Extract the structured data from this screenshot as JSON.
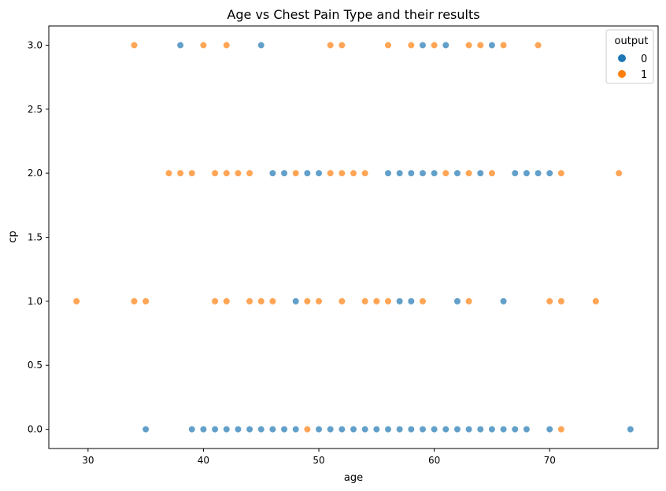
{
  "chart_data": {
    "type": "scatter",
    "title": "Age vs Chest Pain Type and their results",
    "xlabel": "age",
    "ylabel": "cp",
    "xlim": [
      26.6,
      79.4
    ],
    "ylim": [
      -0.15,
      3.15
    ],
    "xticks": [
      "30",
      "40",
      "50",
      "60",
      "70"
    ],
    "yticks": [
      "0.0",
      "0.5",
      "1.0",
      "1.5",
      "2.0",
      "2.5",
      "3.0"
    ],
    "grid": false,
    "legend": {
      "title": "output",
      "position": "top-right"
    },
    "series": [
      {
        "name": "0",
        "color": "#1f77b4",
        "points": [
          [
            35,
            0
          ],
          [
            39,
            0
          ],
          [
            40,
            0
          ],
          [
            41,
            0
          ],
          [
            42,
            0
          ],
          [
            43,
            0
          ],
          [
            44,
            0
          ],
          [
            45,
            0
          ],
          [
            46,
            0
          ],
          [
            47,
            0
          ],
          [
            48,
            0
          ],
          [
            50,
            0
          ],
          [
            51,
            0
          ],
          [
            52,
            0
          ],
          [
            53,
            0
          ],
          [
            54,
            0
          ],
          [
            55,
            0
          ],
          [
            56,
            0
          ],
          [
            57,
            0
          ],
          [
            58,
            0
          ],
          [
            59,
            0
          ],
          [
            60,
            0
          ],
          [
            61,
            0
          ],
          [
            62,
            0
          ],
          [
            63,
            0
          ],
          [
            64,
            0
          ],
          [
            65,
            0
          ],
          [
            66,
            0
          ],
          [
            67,
            0
          ],
          [
            68,
            0
          ],
          [
            70,
            0
          ],
          [
            77,
            0
          ],
          [
            48,
            1
          ],
          [
            57,
            1
          ],
          [
            58,
            1
          ],
          [
            62,
            1
          ],
          [
            66,
            1
          ],
          [
            46,
            2
          ],
          [
            47,
            2
          ],
          [
            49,
            2
          ],
          [
            50,
            2
          ],
          [
            56,
            2
          ],
          [
            57,
            2
          ],
          [
            58,
            2
          ],
          [
            59,
            2
          ],
          [
            60,
            2
          ],
          [
            62,
            2
          ],
          [
            64,
            2
          ],
          [
            67,
            2
          ],
          [
            68,
            2
          ],
          [
            69,
            2
          ],
          [
            70,
            2
          ],
          [
            38,
            3
          ],
          [
            45,
            3
          ],
          [
            59,
            3
          ],
          [
            61,
            3
          ],
          [
            65,
            3
          ]
        ]
      },
      {
        "name": "1",
        "color": "#ff7f0e",
        "points": [
          [
            49,
            0
          ],
          [
            71,
            0
          ],
          [
            29,
            1
          ],
          [
            34,
            1
          ],
          [
            35,
            1
          ],
          [
            41,
            1
          ],
          [
            42,
            1
          ],
          [
            44,
            1
          ],
          [
            45,
            1
          ],
          [
            46,
            1
          ],
          [
            49,
            1
          ],
          [
            50,
            1
          ],
          [
            52,
            1
          ],
          [
            54,
            1
          ],
          [
            55,
            1
          ],
          [
            56,
            1
          ],
          [
            59,
            1
          ],
          [
            63,
            1
          ],
          [
            70,
            1
          ],
          [
            71,
            1
          ],
          [
            74,
            1
          ],
          [
            37,
            2
          ],
          [
            38,
            2
          ],
          [
            39,
            2
          ],
          [
            41,
            2
          ],
          [
            42,
            2
          ],
          [
            43,
            2
          ],
          [
            44,
            2
          ],
          [
            48,
            2
          ],
          [
            51,
            2
          ],
          [
            52,
            2
          ],
          [
            53,
            2
          ],
          [
            54,
            2
          ],
          [
            61,
            2
          ],
          [
            63,
            2
          ],
          [
            65,
            2
          ],
          [
            71,
            2
          ],
          [
            76,
            2
          ],
          [
            34,
            3
          ],
          [
            40,
            3
          ],
          [
            42,
            3
          ],
          [
            51,
            3
          ],
          [
            52,
            3
          ],
          [
            56,
            3
          ],
          [
            58,
            3
          ],
          [
            60,
            3
          ],
          [
            63,
            3
          ],
          [
            64,
            3
          ],
          [
            66,
            3
          ],
          [
            69,
            3
          ]
        ]
      }
    ]
  }
}
